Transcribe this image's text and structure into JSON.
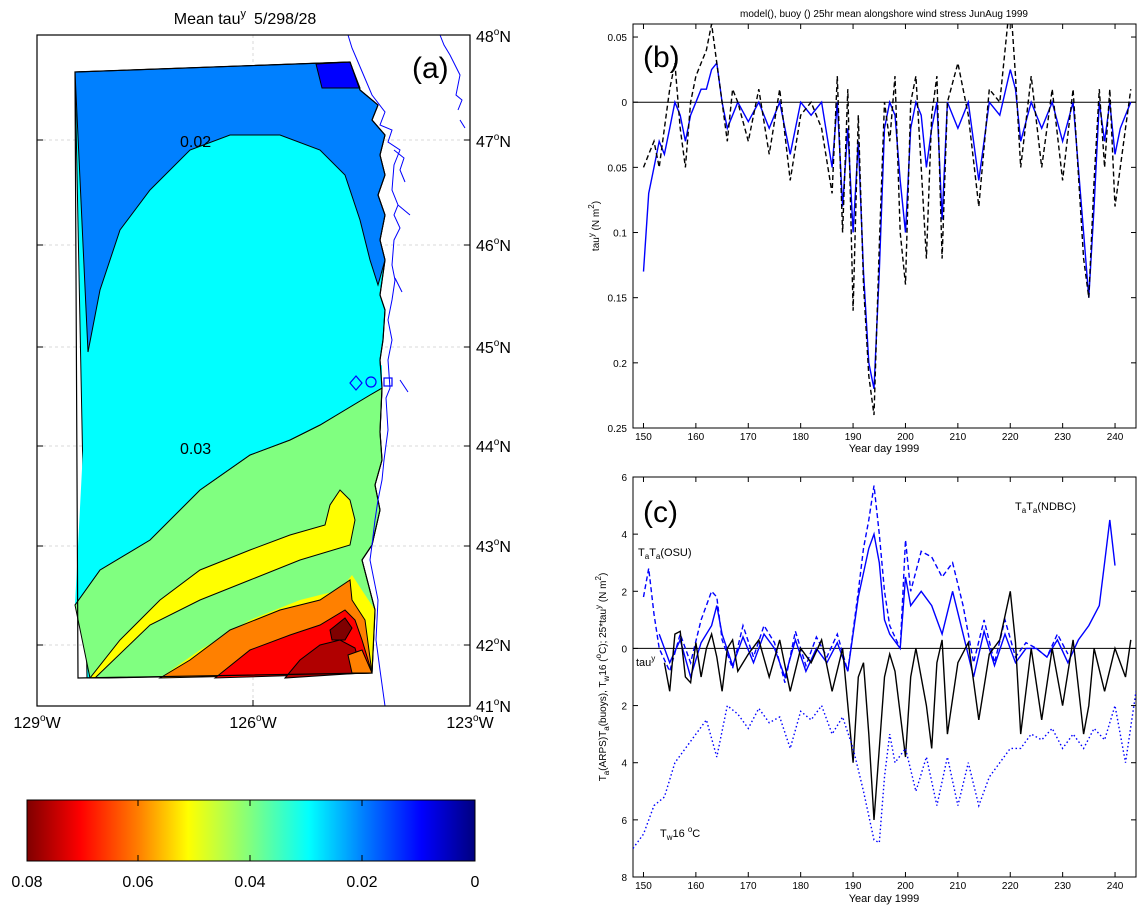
{
  "panel_a": {
    "title_prefix": "Mean tau",
    "title_sup": "y",
    "title_suffix": "5/298/28",
    "label": "(a)",
    "lat_ticks": [
      {
        "deg": "48",
        "hem": "N"
      },
      {
        "deg": "47",
        "hem": "N"
      },
      {
        "deg": "46",
        "hem": "N"
      },
      {
        "deg": "45",
        "hem": "N"
      },
      {
        "deg": "44",
        "hem": "N"
      },
      {
        "deg": "43",
        "hem": "N"
      },
      {
        "deg": "42",
        "hem": "N"
      },
      {
        "deg": "41",
        "hem": "N"
      }
    ],
    "lon_ticks": [
      {
        "deg": "129",
        "hem": "W"
      },
      {
        "deg": "126",
        "hem": "W"
      },
      {
        "deg": "123",
        "hem": "W"
      }
    ],
    "contour_labels": [
      "0.02",
      "0.03"
    ],
    "colorbar_ticks": [
      "0.08",
      "0.06",
      "0.04",
      "0.02",
      "0"
    ]
  },
  "chart_data": [
    {
      "type": "line",
      "panel": "(b)",
      "title": "model(), buoy () 25hr mean alongshore wind stress   JunAug 1999",
      "xlabel": "Year day 1999",
      "ylabel": "tau",
      "ylabel_sup": "y",
      "ylabel_units": " (N m",
      "ylabel_units_sup": "2",
      "ylabel_units_end": ")",
      "xlim": [
        148,
        244
      ],
      "ylim": [
        -0.25,
        0.06
      ],
      "x_ticks": [
        150,
        160,
        170,
        180,
        190,
        200,
        210,
        220,
        230,
        240
      ],
      "y_ticks": [
        0.05,
        0,
        -0.05,
        -0.1,
        -0.15,
        -0.2,
        -0.25
      ],
      "y_tick_labels": [
        "0.05",
        "0",
        "0.05",
        "0.1",
        "0.15",
        "0.2",
        "0.25"
      ],
      "series": [
        {
          "style": "solid",
          "color": "#0000ff",
          "x": [
            150,
            151,
            152,
            153,
            154,
            155,
            156,
            157,
            158,
            159,
            160,
            161,
            162,
            163,
            164,
            165,
            166,
            167,
            168,
            170,
            172,
            174,
            176,
            178,
            180,
            182,
            184,
            186,
            187,
            188,
            189,
            190,
            191,
            192,
            193,
            194,
            195,
            196,
            197,
            198,
            199,
            200,
            201,
            202,
            203,
            204,
            205,
            206,
            207,
            208,
            210,
            212,
            214,
            216,
            218,
            220,
            221,
            222,
            224,
            226,
            228,
            230,
            232,
            234,
            235,
            236,
            237,
            238,
            239,
            240,
            241,
            242,
            243
          ],
          "y": [
            -0.13,
            -0.07,
            -0.05,
            -0.03,
            -0.04,
            -0.02,
            0.0,
            -0.01,
            -0.03,
            -0.01,
            0.0,
            0.01,
            0.01,
            0.025,
            0.03,
            0.0,
            -0.02,
            -0.01,
            0.0,
            -0.015,
            0.0,
            -0.02,
            0.0,
            -0.04,
            0.0,
            -0.01,
            0.0,
            -0.05,
            0.0,
            -0.08,
            -0.02,
            -0.1,
            -0.03,
            -0.13,
            -0.2,
            -0.22,
            -0.13,
            -0.02,
            0.0,
            -0.01,
            -0.06,
            -0.1,
            -0.02,
            0.0,
            -0.01,
            -0.05,
            -0.02,
            0.0,
            -0.09,
            0.0,
            -0.02,
            0.0,
            -0.06,
            0.0,
            -0.01,
            0.025,
            0.01,
            -0.03,
            0.0,
            -0.02,
            0.0,
            -0.03,
            0.0,
            -0.1,
            -0.15,
            -0.08,
            0.0,
            -0.03,
            0.0,
            -0.04,
            -0.02,
            -0.01,
            0.0
          ]
        },
        {
          "style": "dashed",
          "color": "#000000",
          "x": [
            150,
            151,
            152,
            153,
            154,
            155,
            156,
            157,
            158,
            159,
            160,
            161,
            162,
            163,
            164,
            165,
            166,
            167,
            168,
            170,
            172,
            174,
            176,
            178,
            180,
            182,
            184,
            186,
            187,
            188,
            189,
            190,
            191,
            192,
            193,
            194,
            195,
            196,
            197,
            198,
            199,
            200,
            201,
            202,
            203,
            204,
            205,
            206,
            207,
            208,
            210,
            212,
            214,
            216,
            218,
            220,
            221,
            222,
            224,
            226,
            228,
            230,
            232,
            234,
            235,
            236,
            237,
            238,
            239,
            240,
            241,
            242,
            243
          ],
          "y": [
            -0.05,
            -0.04,
            -0.03,
            -0.05,
            -0.02,
            0.01,
            0.03,
            -0.02,
            -0.05,
            0.0,
            0.02,
            0.03,
            0.04,
            0.06,
            0.03,
            0.0,
            -0.03,
            0.01,
            0.0,
            -0.03,
            0.01,
            -0.04,
            0.01,
            -0.06,
            -0.01,
            0.0,
            -0.02,
            -0.07,
            0.02,
            -0.1,
            0.01,
            -0.16,
            -0.01,
            -0.14,
            -0.21,
            -0.24,
            -0.11,
            0.0,
            -0.03,
            0.02,
            -0.1,
            -0.14,
            0.0,
            0.02,
            -0.05,
            -0.12,
            -0.01,
            0.02,
            -0.12,
            0.0,
            0.03,
            -0.01,
            -0.08,
            0.01,
            0.0,
            0.08,
            0.02,
            -0.05,
            0.02,
            -0.05,
            0.01,
            -0.06,
            0.01,
            -0.12,
            -0.15,
            -0.06,
            0.01,
            -0.05,
            0.01,
            -0.08,
            -0.05,
            -0.02,
            0.01
          ]
        }
      ]
    },
    {
      "type": "line",
      "panel": "(c)",
      "xlabel": "Year day 1999",
      "ylabel_parts": [
        "T",
        "a",
        "(ARPS)T",
        "a",
        "(buoys), T",
        "w",
        "16 (",
        "o",
        "C); 25*tau",
        "y",
        " (N m",
        "2",
        ")"
      ],
      "xlim": [
        148,
        244
      ],
      "ylim": [
        -8,
        6
      ],
      "x_ticks": [
        150,
        160,
        170,
        180,
        190,
        200,
        210,
        220,
        230,
        240
      ],
      "y_ticks": [
        6,
        4,
        2,
        0,
        -2,
        -4,
        -6,
        -8
      ],
      "y_tick_labels": [
        "6",
        "4",
        "2",
        "0",
        "2",
        "4",
        "6",
        "8"
      ],
      "annotations": {
        "ndbc": [
          "T",
          "a",
          "T",
          "a",
          "(NDBC)"
        ],
        "osu": [
          "T",
          "a",
          "T",
          "a",
          "(OSU)"
        ],
        "tau": [
          "tau",
          "y"
        ],
        "tw": [
          "T",
          "w",
          "16 ",
          "o",
          "C"
        ]
      },
      "series": [
        {
          "style": "solid",
          "color": "#0000ff",
          "x": [
            153,
            155,
            157,
            159,
            161,
            163,
            164,
            165,
            167,
            169,
            171,
            173,
            175,
            177,
            179,
            181,
            183,
            185,
            187,
            189,
            191,
            193,
            194,
            195,
            196,
            197,
            199,
            200,
            201,
            203,
            205,
            207,
            209,
            211,
            213,
            215,
            217,
            219,
            221,
            223,
            225,
            227,
            229,
            231,
            233,
            235,
            237,
            238,
            239,
            240
          ],
          "y": [
            0.5,
            -0.5,
            0.3,
            -1.0,
            0.2,
            0.8,
            1.5,
            0.5,
            -0.6,
            0.4,
            -0.5,
            0.5,
            0.0,
            -1.0,
            0.3,
            -0.8,
            0.0,
            -0.5,
            0.2,
            -0.8,
            1.8,
            3.5,
            4.0,
            3.0,
            1.0,
            0.5,
            0.0,
            2.5,
            1.5,
            2.0,
            1.5,
            0.5,
            2.0,
            0.5,
            -1.0,
            0.6,
            -0.6,
            0.5,
            -0.5,
            0.0,
            0.0,
            -0.3,
            0.3,
            -0.5,
            0.3,
            0.8,
            1.5,
            3.0,
            4.5,
            2.9
          ]
        },
        {
          "style": "dashed",
          "color": "#0000ff",
          "x": [
            150,
            151,
            152,
            153,
            155,
            157,
            159,
            161,
            163,
            164,
            165,
            167,
            169,
            171,
            173,
            175,
            177,
            179,
            181,
            183,
            185,
            187,
            189,
            191,
            192,
            193,
            194,
            195,
            196,
            197,
            199,
            200,
            201,
            203,
            205,
            207,
            209,
            211,
            213,
            215,
            217,
            219,
            221,
            223,
            225,
            227,
            229,
            231
          ],
          "y": [
            1.8,
            2.8,
            1.2,
            0.0,
            -0.8,
            0.5,
            -0.5,
            1.0,
            2.0,
            1.8,
            0.3,
            -0.7,
            0.8,
            -0.3,
            0.8,
            0.2,
            -1.2,
            0.6,
            -0.6,
            0.4,
            -0.3,
            0.5,
            -0.8,
            2.0,
            3.5,
            4.5,
            5.7,
            4.0,
            2.0,
            0.8,
            0.0,
            3.8,
            2.0,
            3.4,
            3.2,
            2.5,
            3.0,
            1.5,
            -0.5,
            1.0,
            -0.5,
            1.0,
            -0.3,
            0.2,
            0.0,
            -0.3,
            0.5,
            -0.2
          ]
        },
        {
          "style": "solid",
          "color": "#000000",
          "x": [
            154,
            155,
            156,
            157,
            158,
            159,
            160,
            161,
            162,
            163,
            164,
            165,
            166,
            167,
            168,
            170,
            172,
            174,
            176,
            178,
            180,
            182,
            184,
            186,
            188,
            190,
            191,
            192,
            193,
            194,
            195,
            196,
            197,
            198,
            200,
            201,
            202,
            204,
            205,
            206,
            207,
            208,
            210,
            212,
            214,
            216,
            218,
            220,
            221,
            222,
            224,
            226,
            228,
            230,
            232,
            234,
            235,
            236,
            238,
            240,
            242,
            243
          ],
          "y": [
            -0.5,
            -1.5,
            0.5,
            0.6,
            -1.0,
            -1.2,
            0.2,
            -1.0,
            0.0,
            0.5,
            -0.3,
            -1.5,
            0.0,
            0.3,
            -0.8,
            -0.2,
            0.3,
            -1.0,
            0.3,
            -1.5,
            0.0,
            -0.5,
            0.3,
            -1.5,
            0.0,
            -4.0,
            -1.0,
            -0.5,
            -3.0,
            -6.0,
            -3.5,
            -1.0,
            -0.2,
            -0.8,
            -3.8,
            -1.0,
            0.0,
            -2.0,
            -3.5,
            -0.5,
            0.3,
            -3.0,
            -0.5,
            0.2,
            -2.5,
            -0.2,
            0.3,
            2.0,
            0.2,
            -3.0,
            0.0,
            -2.5,
            0.0,
            -2.0,
            0.3,
            -3.0,
            -2.0,
            0.0,
            -1.5,
            0.0,
            -1.0,
            0.3
          ]
        },
        {
          "style": "dotted",
          "color": "#0000ff",
          "x": [
            148,
            150,
            152,
            154,
            156,
            158,
            160,
            162,
            164,
            166,
            168,
            170,
            172,
            174,
            176,
            178,
            180,
            182,
            184,
            186,
            188,
            190,
            192,
            194,
            195,
            196,
            197,
            198,
            200,
            202,
            204,
            206,
            208,
            210,
            212,
            214,
            216,
            218,
            220,
            222,
            224,
            226,
            228,
            230,
            232,
            234,
            236,
            238,
            240,
            242,
            244
          ],
          "y": [
            -7.0,
            -6.5,
            -5.5,
            -5.2,
            -4.0,
            -3.5,
            -3.0,
            -2.5,
            -3.8,
            -2.0,
            -2.3,
            -2.8,
            -2.1,
            -2.6,
            -2.4,
            -3.5,
            -2.2,
            -2.5,
            -2.0,
            -3.0,
            -2.4,
            -3.5,
            -5.0,
            -6.7,
            -6.8,
            -4.5,
            -3.0,
            -4.0,
            -3.5,
            -5.0,
            -3.8,
            -5.5,
            -3.8,
            -5.5,
            -4.0,
            -5.5,
            -4.5,
            -4.0,
            -3.5,
            -3.5,
            -3.0,
            -3.2,
            -2.8,
            -3.5,
            -3.0,
            -3.5,
            -2.8,
            -3.2,
            -2.0,
            -4.0,
            -1.5
          ]
        }
      ]
    }
  ]
}
